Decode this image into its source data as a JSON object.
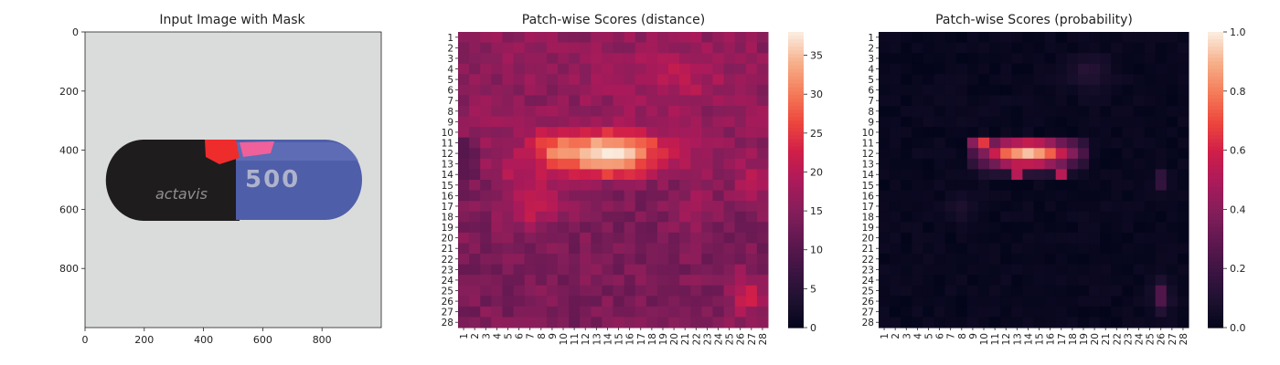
{
  "chart_data": [
    {
      "type": "image",
      "title": "Input Image with Mask",
      "xlim": [
        0,
        1000
      ],
      "ylim": [
        1000,
        0
      ],
      "x_ticks": [
        0,
        200,
        400,
        600,
        800
      ],
      "y_ticks": [
        0,
        200,
        400,
        600,
        800
      ],
      "capsule": {
        "left_color": "#1f1c1d",
        "right_color": "#4f5ea8",
        "print_left": "actavis",
        "print_right": "500",
        "mask_color": "#ee2c2c",
        "mask_color_2": "#f0609a"
      }
    },
    {
      "type": "heatmap",
      "title": "Patch-wise Scores (distance)",
      "rows": 28,
      "cols": 28,
      "colormap": "rocket",
      "vmin": 0,
      "vmax": 38,
      "colorbar_ticks": [
        0,
        5,
        10,
        15,
        20,
        25,
        30,
        35
      ],
      "description_values": "patch distance scores, peak ~38 at row 12 col 13"
    },
    {
      "type": "heatmap",
      "title": "Patch-wise Scores (probability)",
      "rows": 28,
      "cols": 28,
      "colormap": "rocket",
      "vmin": 0,
      "vmax": 1,
      "colorbar_ticks": [
        0.0,
        0.2,
        0.4,
        0.6,
        0.8,
        1.0
      ],
      "colorbar_tick_labels": [
        "0.0",
        "0.2",
        "0.4",
        "0.6",
        "0.8",
        "1.0"
      ]
    }
  ]
}
